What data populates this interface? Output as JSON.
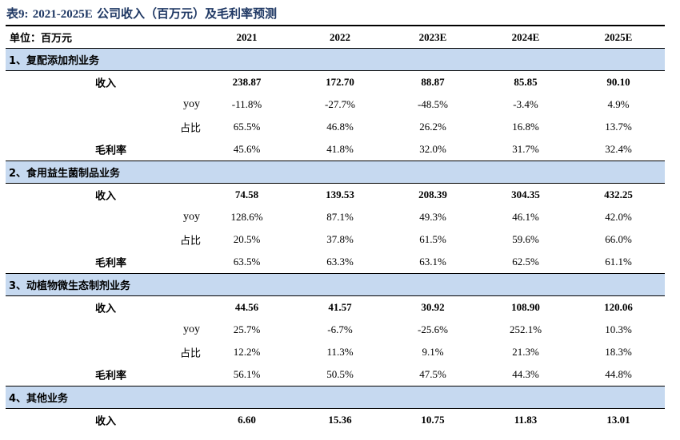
{
  "title": {
    "prefix": "表",
    "num": "9:",
    "years": "2021-2025E",
    "text": "公司收入（百万元）及毛利率预测"
  },
  "header": {
    "label": "单位：百万元",
    "years": [
      "2021",
      "2022",
      "2023E",
      "2024E",
      "2025E"
    ]
  },
  "sections": [
    {
      "name": "1、复配添加剂业务",
      "revenue": {
        "label": "收入",
        "values": [
          "238.87",
          "172.70",
          "88.87",
          "85.85",
          "90.10"
        ]
      },
      "yoy": {
        "label": "yoy",
        "values": [
          "-11.8%",
          "-27.7%",
          "-48.5%",
          "-3.4%",
          "4.9%"
        ]
      },
      "share": {
        "label": "占比",
        "values": [
          "65.5%",
          "46.8%",
          "26.2%",
          "16.8%",
          "13.7%"
        ]
      },
      "margin": {
        "label": "毛利率",
        "values": [
          "45.6%",
          "41.8%",
          "32.0%",
          "31.7%",
          "32.4%"
        ]
      }
    },
    {
      "name": "2、食用益生菌制品业务",
      "revenue": {
        "label": "收入",
        "values": [
          "74.58",
          "139.53",
          "208.39",
          "304.35",
          "432.25"
        ]
      },
      "yoy": {
        "label": "yoy",
        "values": [
          "128.6%",
          "87.1%",
          "49.3%",
          "46.1%",
          "42.0%"
        ]
      },
      "share": {
        "label": "占比",
        "values": [
          "20.5%",
          "37.8%",
          "61.5%",
          "59.6%",
          "66.0%"
        ]
      },
      "margin": {
        "label": "毛利率",
        "values": [
          "63.5%",
          "63.3%",
          "63.1%",
          "62.5%",
          "61.1%"
        ]
      }
    },
    {
      "name": "3、动植物微生态制剂业务",
      "revenue": {
        "label": "收入",
        "values": [
          "44.56",
          "41.57",
          "30.92",
          "108.90",
          "120.06"
        ]
      },
      "yoy": {
        "label": "yoy",
        "values": [
          "25.7%",
          "-6.7%",
          "-25.6%",
          "252.1%",
          "10.3%"
        ]
      },
      "share": {
        "label": "占比",
        "values": [
          "12.2%",
          "11.3%",
          "9.1%",
          "21.3%",
          "18.3%"
        ]
      },
      "margin": {
        "label": "毛利率",
        "values": [
          "56.1%",
          "50.5%",
          "47.5%",
          "44.3%",
          "44.8%"
        ]
      }
    },
    {
      "name": "4、其他业务",
      "revenue": {
        "label": "收入",
        "values": [
          "6.60",
          "15.36",
          "10.75",
          "11.83",
          "13.01"
        ]
      }
    }
  ]
}
